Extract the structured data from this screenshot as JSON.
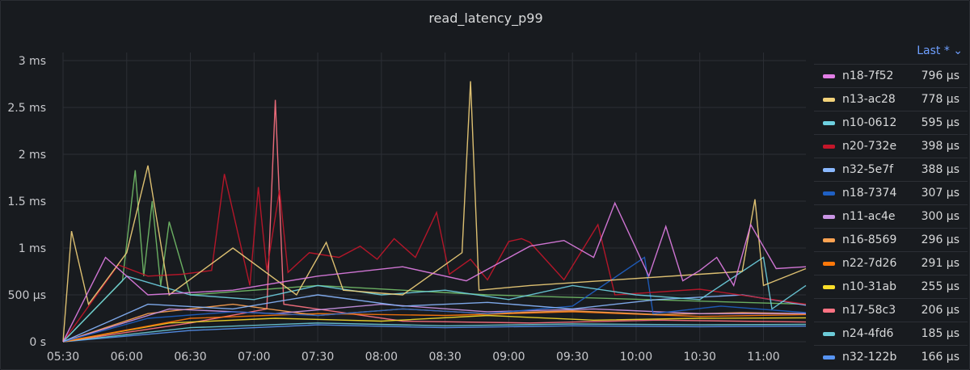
{
  "panel": {
    "title": "read_latency_p99"
  },
  "legend": {
    "header_label": "Last * ⌄",
    "items": [
      {
        "name": "n18-7f52",
        "value": "796 µs",
        "color": "#e27ee6"
      },
      {
        "name": "n13-ac28",
        "value": "778 µs",
        "color": "#f2d27a"
      },
      {
        "name": "n10-0612",
        "value": "595 µs",
        "color": "#6ed0e0"
      },
      {
        "name": "n20-732e",
        "value": "398 µs",
        "color": "#c4162a"
      },
      {
        "name": "n32-5e7f",
        "value": "388 µs",
        "color": "#8ab8ff"
      },
      {
        "name": "n18-7374",
        "value": "307 µs",
        "color": "#1f60c4"
      },
      {
        "name": "n11-ac4e",
        "value": "300 µs",
        "color": "#ca95e5"
      },
      {
        "name": "n16-8569",
        "value": "296 µs",
        "color": "#ffa352"
      },
      {
        "name": "n22-7d26",
        "value": "291 µs",
        "color": "#ff780a"
      },
      {
        "name": "n10-31ab",
        "value": "255 µs",
        "color": "#fade2a"
      },
      {
        "name": "n17-58c3",
        "value": "206 µs",
        "color": "#ff7383"
      },
      {
        "name": "n24-4fd6",
        "value": "185 µs",
        "color": "#6ccbd8"
      },
      {
        "name": "n32-122b",
        "value": "166 µs",
        "color": "#5794f2"
      }
    ]
  },
  "chart_data": {
    "type": "line",
    "title": "read_latency_p99",
    "x_ticks": [
      "05:30",
      "06:00",
      "06:30",
      "07:00",
      "07:30",
      "08:00",
      "08:30",
      "09:00",
      "09:30",
      "10:00",
      "10:30",
      "11:00"
    ],
    "x_range": [
      "05:30",
      "11:20"
    ],
    "y_ticks": [
      "0 s",
      "500 µs",
      "1 ms",
      "1.5 ms",
      "2 ms",
      "2.5 ms",
      "3 ms"
    ],
    "y_range_us": [
      0,
      3000
    ],
    "grid": true,
    "legend_placement": "right",
    "series": [
      {
        "name": "n18-7f52",
        "color": "#e27ee6",
        "values": [
          [
            0,
            0
          ],
          [
            10,
            900
          ],
          [
            20,
            500
          ],
          [
            40,
            550
          ],
          [
            60,
            700
          ],
          [
            80,
            800
          ],
          [
            95,
            650
          ],
          [
            110,
            1020
          ],
          [
            118,
            1080
          ],
          [
            125,
            900
          ],
          [
            130,
            1480
          ],
          [
            138,
            700
          ],
          [
            142,
            1230
          ],
          [
            146,
            650
          ],
          [
            150,
            760
          ],
          [
            154,
            900
          ],
          [
            158,
            600
          ],
          [
            162,
            1250
          ],
          [
            168,
            780
          ],
          [
            175,
            800
          ]
        ]
      },
      {
        "name": "n13-ac28",
        "color": "#f2d27a",
        "values": [
          [
            0,
            0
          ],
          [
            2,
            1180
          ],
          [
            6,
            400
          ],
          [
            15,
            950
          ],
          [
            20,
            1880
          ],
          [
            25,
            500
          ],
          [
            40,
            1000
          ],
          [
            55,
            500
          ],
          [
            62,
            1060
          ],
          [
            66,
            550
          ],
          [
            80,
            500
          ],
          [
            94,
            950
          ],
          [
            96,
            2780
          ],
          [
            98,
            550
          ],
          [
            110,
            600
          ],
          [
            160,
            750
          ],
          [
            163,
            1520
          ],
          [
            165,
            600
          ],
          [
            175,
            780
          ]
        ]
      },
      {
        "name": "n10-0612",
        "color": "#6ed0e0",
        "values": [
          [
            0,
            0
          ],
          [
            15,
            700
          ],
          [
            30,
            500
          ],
          [
            45,
            450
          ],
          [
            60,
            600
          ],
          [
            75,
            500
          ],
          [
            90,
            550
          ],
          [
            105,
            450
          ],
          [
            120,
            600
          ],
          [
            135,
            500
          ],
          [
            150,
            450
          ],
          [
            165,
            900
          ],
          [
            167,
            350
          ],
          [
            175,
            600
          ]
        ]
      },
      {
        "name": "n20-732e",
        "color": "#c4162a",
        "values": [
          [
            0,
            0
          ],
          [
            13,
            820
          ],
          [
            20,
            700
          ],
          [
            28,
            720
          ],
          [
            35,
            760
          ],
          [
            38,
            1790
          ],
          [
            44,
            600
          ],
          [
            46,
            1650
          ],
          [
            48,
            760
          ],
          [
            51,
            1620
          ],
          [
            53,
            740
          ],
          [
            58,
            950
          ],
          [
            65,
            900
          ],
          [
            70,
            1020
          ],
          [
            74,
            880
          ],
          [
            78,
            1100
          ],
          [
            83,
            900
          ],
          [
            88,
            1380
          ],
          [
            91,
            720
          ],
          [
            96,
            880
          ],
          [
            100,
            660
          ],
          [
            105,
            1070
          ],
          [
            108,
            1100
          ],
          [
            110,
            1060
          ],
          [
            118,
            660
          ],
          [
            126,
            1250
          ],
          [
            130,
            500
          ],
          [
            150,
            560
          ],
          [
            175,
            400
          ]
        ]
      },
      {
        "name": "n32-5e7f",
        "color": "#8ab8ff",
        "values": [
          [
            0,
            0
          ],
          [
            20,
            400
          ],
          [
            40,
            350
          ],
          [
            60,
            500
          ],
          [
            80,
            380
          ],
          [
            100,
            420
          ],
          [
            120,
            350
          ],
          [
            140,
            450
          ],
          [
            160,
            500
          ],
          [
            175,
            390
          ]
        ]
      },
      {
        "name": "n18-7374",
        "color": "#1f60c4",
        "values": [
          [
            0,
            0
          ],
          [
            20,
            250
          ],
          [
            40,
            320
          ],
          [
            60,
            280
          ],
          [
            80,
            350
          ],
          [
            100,
            300
          ],
          [
            120,
            380
          ],
          [
            137,
            900
          ],
          [
            139,
            300
          ],
          [
            155,
            380
          ],
          [
            175,
            310
          ]
        ]
      },
      {
        "name": "n11-ac4e",
        "color": "#ca95e5",
        "values": [
          [
            0,
            0
          ],
          [
            25,
            350
          ],
          [
            50,
            300
          ],
          [
            75,
            400
          ],
          [
            100,
            320
          ],
          [
            125,
            350
          ],
          [
            150,
            300
          ],
          [
            175,
            300
          ]
        ]
      },
      {
        "name": "n16-8569",
        "color": "#ffa352",
        "values": [
          [
            0,
            0
          ],
          [
            20,
            300
          ],
          [
            40,
            400
          ],
          [
            60,
            280
          ],
          [
            80,
            350
          ],
          [
            100,
            300
          ],
          [
            120,
            330
          ],
          [
            140,
            290
          ],
          [
            160,
            310
          ],
          [
            175,
            300
          ]
        ]
      },
      {
        "name": "n22-7d26",
        "color": "#ff780a",
        "values": [
          [
            0,
            0
          ],
          [
            30,
            250
          ],
          [
            60,
            300
          ],
          [
            90,
            280
          ],
          [
            120,
            320
          ],
          [
            150,
            270
          ],
          [
            175,
            290
          ]
        ]
      },
      {
        "name": "n10-31ab",
        "color": "#fade2a",
        "values": [
          [
            0,
            0
          ],
          [
            25,
            200
          ],
          [
            50,
            250
          ],
          [
            75,
            220
          ],
          [
            100,
            280
          ],
          [
            125,
            230
          ],
          [
            150,
            250
          ],
          [
            175,
            255
          ]
        ]
      },
      {
        "name": "n17-58c3",
        "color": "#ff7383",
        "values": [
          [
            0,
            0
          ],
          [
            30,
            200
          ],
          [
            48,
            350
          ],
          [
            50,
            2580
          ],
          [
            52,
            400
          ],
          [
            80,
            220
          ],
          [
            110,
            200
          ],
          [
            140,
            230
          ],
          [
            175,
            210
          ]
        ]
      },
      {
        "name": "n24-4fd6",
        "color": "#6ccbd8",
        "values": [
          [
            0,
            0
          ],
          [
            30,
            150
          ],
          [
            60,
            200
          ],
          [
            90,
            170
          ],
          [
            120,
            190
          ],
          [
            150,
            180
          ],
          [
            175,
            185
          ]
        ]
      },
      {
        "name": "n32-122b",
        "color": "#5794f2",
        "values": [
          [
            0,
            0
          ],
          [
            30,
            120
          ],
          [
            60,
            180
          ],
          [
            90,
            150
          ],
          [
            120,
            170
          ],
          [
            150,
            160
          ],
          [
            175,
            166
          ]
        ]
      },
      {
        "name": "",
        "color": "#73bf69",
        "values": [
          [
            0,
            0
          ],
          [
            14,
            650
          ],
          [
            17,
            1830
          ],
          [
            19,
            700
          ],
          [
            21,
            1500
          ],
          [
            23,
            600
          ],
          [
            25,
            1280
          ],
          [
            30,
            500
          ],
          [
            60,
            600
          ],
          [
            100,
            500
          ],
          [
            175,
            400
          ]
        ]
      }
    ]
  }
}
